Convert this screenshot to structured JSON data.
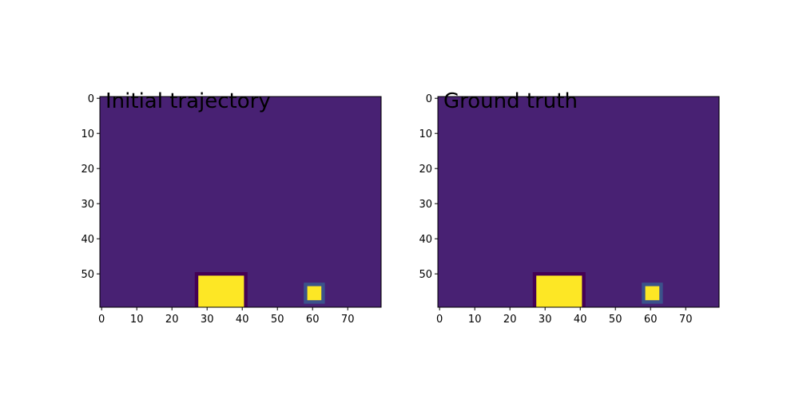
{
  "chart_data": [
    {
      "type": "heatmap",
      "title": "Initial trajectory",
      "grid": false,
      "xlim": [
        -0.5,
        79.5
      ],
      "ylim": [
        59.5,
        -0.5
      ],
      "xticks": [
        0,
        10,
        20,
        30,
        40,
        50,
        60,
        70
      ],
      "yticks": [
        0,
        10,
        20,
        30,
        40,
        50
      ],
      "background_value": "low",
      "colors": {
        "background": "#482173",
        "bright": "#fde725",
        "dark": "#440154",
        "mid": "#3b528b"
      },
      "regions": [
        {
          "name": "large-block-border",
          "x": [
            26.5,
            41.5
          ],
          "y": [
            49.5,
            59.5
          ],
          "color": "#440154"
        },
        {
          "name": "large-block",
          "x": [
            27.5,
            40.5
          ],
          "y": [
            50.5,
            59.5
          ],
          "color": "#fde725"
        },
        {
          "name": "small-block-border",
          "x": [
            57.5,
            63.5
          ],
          "y": [
            52.5,
            58.5
          ],
          "color": "#3b528b"
        },
        {
          "name": "small-block",
          "x": [
            58.5,
            62.5
          ],
          "y": [
            53.5,
            57.5
          ],
          "color": "#fde725"
        }
      ]
    },
    {
      "type": "heatmap",
      "title": "Ground truth",
      "grid": false,
      "xlim": [
        -0.5,
        79.5
      ],
      "ylim": [
        59.5,
        -0.5
      ],
      "xticks": [
        0,
        10,
        20,
        30,
        40,
        50,
        60,
        70
      ],
      "yticks": [
        0,
        10,
        20,
        30,
        40,
        50
      ],
      "background_value": "low",
      "colors": {
        "background": "#482173",
        "bright": "#fde725",
        "dark": "#440154",
        "mid": "#3b528b"
      },
      "regions": [
        {
          "name": "large-block-border",
          "x": [
            26.5,
            41.5
          ],
          "y": [
            49.5,
            59.5
          ],
          "color": "#440154"
        },
        {
          "name": "large-block",
          "x": [
            27.5,
            40.5
          ],
          "y": [
            50.5,
            59.5
          ],
          "color": "#fde725"
        },
        {
          "name": "small-block-border",
          "x": [
            57.5,
            63.5
          ],
          "y": [
            52.5,
            58.5
          ],
          "color": "#3b528b"
        },
        {
          "name": "small-block",
          "x": [
            58.5,
            62.5
          ],
          "y": [
            53.5,
            57.5
          ],
          "color": "#fde725"
        }
      ]
    }
  ]
}
